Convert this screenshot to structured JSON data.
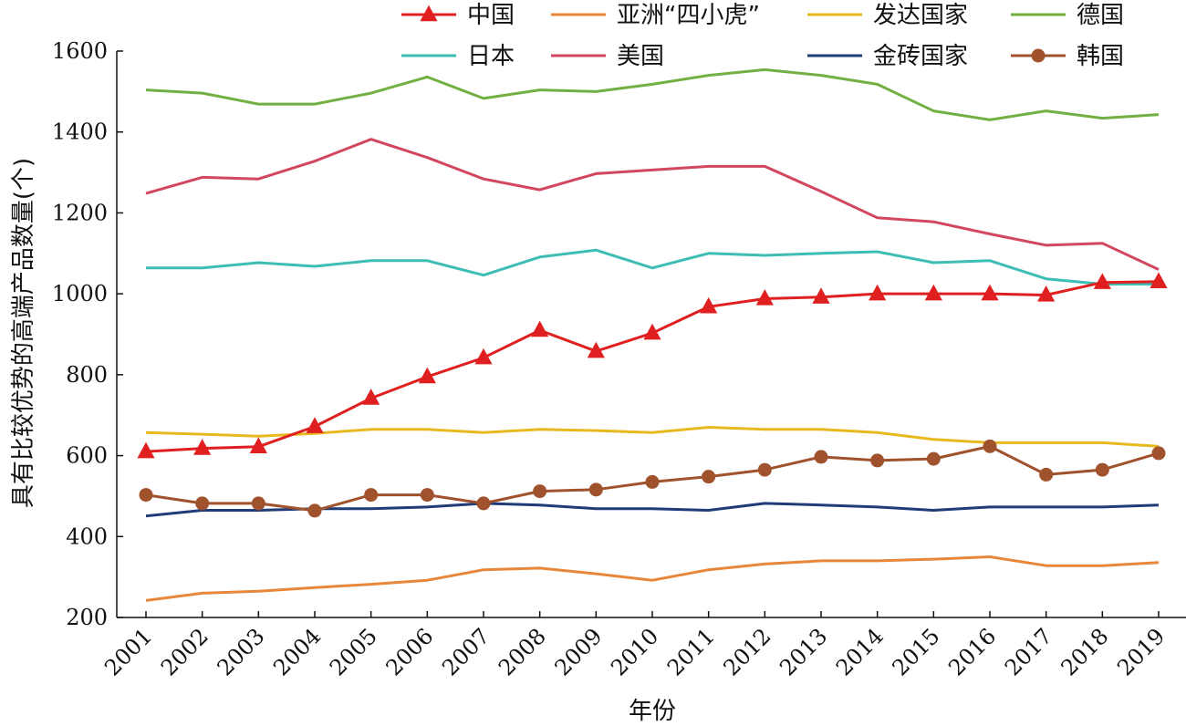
{
  "chart_data": {
    "type": "line",
    "title": "",
    "xlabel": "年份",
    "ylabel": "具有比较优势的高端产品数量(个)",
    "ylim": [
      200,
      1600
    ],
    "yticks": [
      200,
      400,
      600,
      800,
      1000,
      1200,
      1400,
      1600
    ],
    "grid": false,
    "legend_position": "top",
    "categories": [
      "2001",
      "2002",
      "2003",
      "2004",
      "2005",
      "2006",
      "2007",
      "2008",
      "2009",
      "2010",
      "2011",
      "2012",
      "2013",
      "2014",
      "2015",
      "2016",
      "2017",
      "2018",
      "2019"
    ],
    "series": [
      {
        "name": "中国",
        "color": "#e02020",
        "marker": "triangle",
        "values": [
          610,
          618,
          622,
          672,
          742,
          795,
          842,
          910,
          858,
          903,
          968,
          988,
          992,
          1000,
          1000,
          1000,
          997,
          1028,
          1030
        ]
      },
      {
        "name": "亚洲“四小虎”",
        "color": "#e8873a",
        "marker": "none",
        "values": [
          242,
          260,
          265,
          274,
          282,
          292,
          318,
          322,
          308,
          292,
          318,
          332,
          340,
          340,
          344,
          350,
          328,
          328,
          336
        ]
      },
      {
        "name": "发达国家",
        "color": "#e8b820",
        "marker": "none",
        "values": [
          657,
          653,
          648,
          655,
          665,
          665,
          657,
          665,
          662,
          657,
          670,
          665,
          665,
          657,
          640,
          632,
          632,
          632,
          623
        ]
      },
      {
        "name": "德国",
        "color": "#72b043",
        "marker": "none",
        "values": [
          1504,
          1496,
          1469,
          1469,
          1496,
          1536,
          1483,
          1504,
          1500,
          1518,
          1540,
          1554,
          1540,
          1518,
          1452,
          1430,
          1452,
          1434,
          1443
        ]
      },
      {
        "name": "日本",
        "color": "#3dbdb3",
        "marker": "none",
        "values": [
          1064,
          1064,
          1077,
          1068,
          1082,
          1082,
          1046,
          1091,
          1108,
          1064,
          1100,
          1095,
          1100,
          1104,
          1077,
          1082,
          1037,
          1024,
          1024
        ]
      },
      {
        "name": "美国",
        "color": "#d2475f",
        "marker": "none",
        "values": [
          1248,
          1288,
          1284,
          1328,
          1382,
          1337,
          1284,
          1257,
          1297,
          1306,
          1315,
          1315,
          1253,
          1188,
          1178,
          1148,
          1120,
          1125,
          1060
        ]
      },
      {
        "name": "金砖国家",
        "color": "#1f3b78",
        "marker": "none",
        "values": [
          451,
          465,
          465,
          469,
          469,
          473,
          482,
          478,
          469,
          469,
          465,
          482,
          478,
          473,
          465,
          473,
          473,
          473,
          478
        ]
      },
      {
        "name": "韩国",
        "color": "#a0522d",
        "marker": "circle",
        "values": [
          503,
          482,
          482,
          464,
          503,
          503,
          482,
          512,
          516,
          535,
          548,
          565,
          597,
          588,
          592,
          623,
          553,
          565,
          606
        ]
      }
    ]
  }
}
